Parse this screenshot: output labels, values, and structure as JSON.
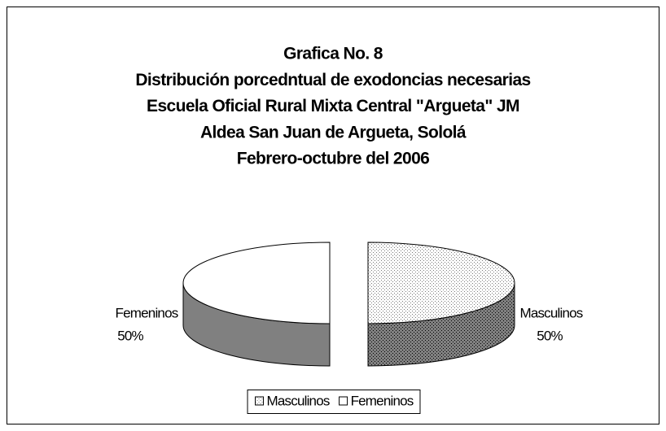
{
  "chart_data": {
    "type": "pie",
    "title": [
      "Grafica No. 8",
      "Distribución porcedntual de exodoncias necesarias",
      "Escuela Oficial Rural Mixta Central \"Argueta\" JM",
      "Aldea San Juan de Argueta, Sololá",
      "Febrero-octubre del 2006"
    ],
    "categories": [
      "Masculinos",
      "Femeninos"
    ],
    "values": [
      50,
      50
    ],
    "value_labels": [
      "50%",
      "50%"
    ],
    "legend": "bottom"
  }
}
